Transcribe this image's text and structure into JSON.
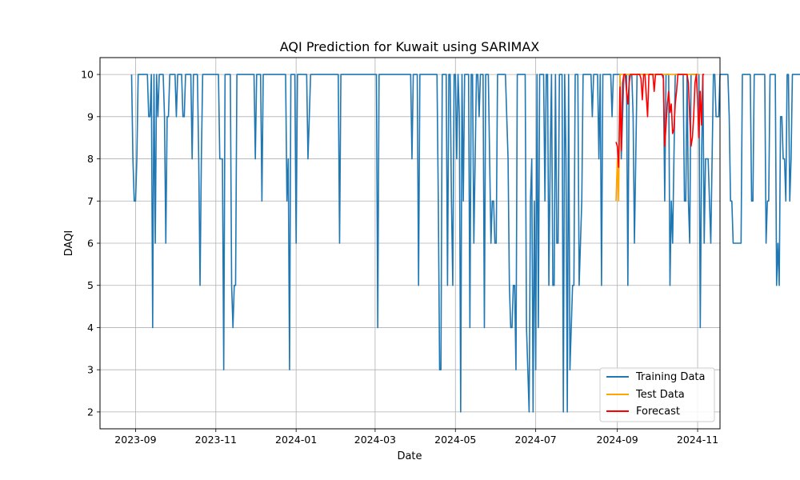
{
  "chart_data": {
    "type": "line",
    "title": "AQI Prediction for Kuwait using SARIMAX",
    "xlabel": "Date",
    "ylabel": "DAQI",
    "xlim": [
      "2023-08-05",
      "2024-11-18"
    ],
    "ylim": [
      1.6,
      10.4
    ],
    "x_ticks": [
      "2023-09-01",
      "2023-11-01",
      "2024-01-01",
      "2024-03-01",
      "2024-05-01",
      "2024-07-01",
      "2024-09-01",
      "2024-11-01"
    ],
    "x_tick_labels": [
      "2023-09",
      "2023-11",
      "2024-01",
      "2024-03",
      "2024-05",
      "2024-07",
      "2024-09",
      "2024-11"
    ],
    "y_ticks": [
      2,
      3,
      4,
      5,
      6,
      7,
      8,
      9,
      10
    ],
    "y_tick_labels": [
      "2",
      "3",
      "4",
      "5",
      "6",
      "7",
      "8",
      "9",
      "10"
    ],
    "grid": true,
    "legend_position": "bottom-right",
    "colors": {
      "training": "#1f77b4",
      "test": "#ffa500",
      "forecast": "#ff0000"
    },
    "series": [
      {
        "name": "Training Data",
        "start": "2023-08-29",
        "values": [
          10,
          8,
          7,
          7,
          8,
          10,
          10,
          10,
          10,
          10,
          10,
          10,
          10,
          9,
          9,
          10,
          4,
          10,
          6,
          10,
          9,
          10,
          10,
          10,
          10,
          9,
          6,
          9,
          9,
          10,
          10,
          10,
          10,
          10,
          9,
          10,
          10,
          10,
          10,
          9,
          9,
          10,
          10,
          10,
          10,
          10,
          8,
          10,
          10,
          10,
          10,
          8,
          5,
          8,
          10,
          10,
          10,
          10,
          10,
          10,
          10,
          10,
          10,
          10,
          10,
          10,
          10,
          8,
          8,
          8,
          3,
          10,
          10,
          10,
          10,
          10,
          5,
          4,
          5,
          5,
          10,
          10,
          10,
          10,
          10,
          10,
          10,
          10,
          10,
          10,
          10,
          10,
          10,
          10,
          8,
          10,
          10,
          10,
          10,
          7,
          10,
          10,
          10,
          10,
          10,
          10,
          10,
          10,
          10,
          10,
          10,
          10,
          10,
          10,
          10,
          10,
          10,
          10,
          7,
          8,
          3,
          10,
          10,
          10,
          10,
          6,
          10,
          10,
          10,
          10,
          10,
          10,
          10,
          10,
          8,
          9,
          10,
          10,
          10,
          10,
          10,
          10,
          10,
          10,
          10,
          10,
          10,
          10,
          10,
          10,
          10,
          10,
          10,
          10,
          10,
          10,
          10,
          10,
          6,
          10,
          10,
          10,
          10,
          10,
          10,
          10,
          10,
          10,
          10,
          10,
          10,
          10,
          10,
          10,
          10,
          10,
          10,
          10,
          10,
          10,
          10,
          10,
          10,
          10,
          10,
          10,
          10,
          4,
          10,
          10,
          10,
          10,
          10,
          10,
          10,
          10,
          10,
          10,
          10,
          10,
          10,
          10,
          10,
          10,
          10,
          10,
          10,
          10,
          10,
          10,
          10,
          10,
          10,
          8,
          10,
          10,
          10,
          10,
          5,
          10,
          10,
          10,
          10,
          10,
          10,
          10,
          10,
          10,
          10,
          10,
          10,
          10,
          10,
          7,
          3,
          3,
          10,
          10,
          10,
          10,
          5,
          10,
          10,
          7,
          5,
          10,
          10,
          8,
          10,
          9,
          2,
          10,
          7,
          10,
          10,
          10,
          10,
          4,
          10,
          10,
          6,
          8,
          10,
          10,
          9,
          10,
          10,
          10,
          4,
          10,
          10,
          10,
          8,
          6,
          7,
          7,
          6,
          6,
          10,
          10,
          10,
          10,
          10,
          10,
          10,
          9,
          8,
          5,
          4,
          4,
          5,
          5,
          3,
          10,
          10,
          10,
          10,
          10,
          10,
          10,
          4,
          3,
          2,
          7,
          8,
          2,
          7,
          3,
          10,
          4,
          10,
          10,
          10,
          10,
          7,
          10,
          10,
          5,
          8,
          10,
          5,
          5,
          10,
          6,
          6,
          10,
          10,
          10,
          2,
          10,
          8,
          2,
          10,
          3,
          4,
          5,
          5,
          10,
          10,
          10,
          5,
          6,
          7,
          10,
          10,
          10,
          10,
          10,
          10,
          10,
          9,
          10,
          10,
          10,
          10,
          8,
          10,
          5,
          10,
          10,
          10,
          10,
          10,
          10,
          10,
          9,
          10,
          10,
          10,
          10,
          10,
          10,
          8,
          9,
          10,
          10,
          10,
          5,
          10,
          10,
          10,
          9,
          6,
          8,
          10,
          10,
          10,
          10,
          10,
          10,
          10,
          10,
          10,
          10,
          10,
          10,
          10,
          10,
          10,
          10,
          10,
          10,
          10,
          10,
          10,
          7,
          10,
          10,
          10,
          5,
          7,
          6,
          8,
          10,
          10,
          10,
          10,
          10,
          10,
          10,
          7,
          7,
          10,
          7,
          6,
          10,
          10,
          10,
          10,
          10,
          10,
          10,
          4,
          8,
          10,
          6,
          8,
          8,
          8,
          7,
          6,
          8,
          10,
          10,
          9,
          9,
          9,
          10,
          10,
          10,
          10,
          10,
          10,
          10,
          9,
          7,
          7,
          6,
          6,
          6,
          6,
          6,
          6,
          6,
          10,
          10,
          10,
          10,
          10,
          10,
          10,
          7,
          7,
          10,
          10,
          10,
          10,
          10,
          10,
          10,
          10,
          10,
          6,
          7,
          7,
          10,
          10,
          10,
          10,
          10,
          5,
          6,
          5,
          9,
          9,
          8,
          8,
          7,
          10,
          10,
          7,
          8,
          10,
          10,
          10,
          10,
          10,
          10,
          10,
          10,
          10,
          10,
          10,
          10
        ]
      },
      {
        "name": "Test Data",
        "start": "2024-08-31",
        "values": [
          7,
          8,
          7,
          10,
          10,
          10,
          10,
          10,
          10,
          10,
          10,
          10,
          10,
          10,
          10,
          10,
          10,
          10,
          10,
          10,
          10,
          10,
          10,
          10,
          10,
          10,
          10,
          10,
          10,
          10,
          10,
          10,
          10,
          10,
          10,
          10,
          10,
          10,
          10,
          10,
          10,
          10,
          10,
          10,
          10,
          10,
          10,
          10,
          10,
          10,
          10,
          10,
          10,
          10,
          10,
          10,
          10,
          10,
          10,
          10,
          10,
          10,
          10,
          10
        ]
      },
      {
        "name": "Forecast",
        "start": "2024-08-31",
        "values": [
          8.4,
          8.3,
          7.8,
          9.7,
          8.2,
          9.8,
          10,
          10,
          9.6,
          9.3,
          9.8,
          10,
          10,
          10,
          10,
          10,
          10,
          10,
          10,
          9.9,
          9.4,
          10,
          10,
          9.5,
          9.0,
          10,
          10,
          10,
          10,
          9.6,
          10,
          10,
          10,
          10,
          10,
          10,
          9.9,
          8.3,
          8.8,
          9.3,
          9.6,
          9.1,
          9.3,
          8.6,
          8.7,
          9.3,
          9.6,
          10,
          10,
          10,
          10,
          10,
          10,
          10,
          10,
          9.8,
          9.0,
          8.3,
          8.5,
          9.0,
          9.8,
          10,
          9.4,
          8.5,
          9.6,
          8.8,
          10,
          10
        ]
      }
    ]
  }
}
